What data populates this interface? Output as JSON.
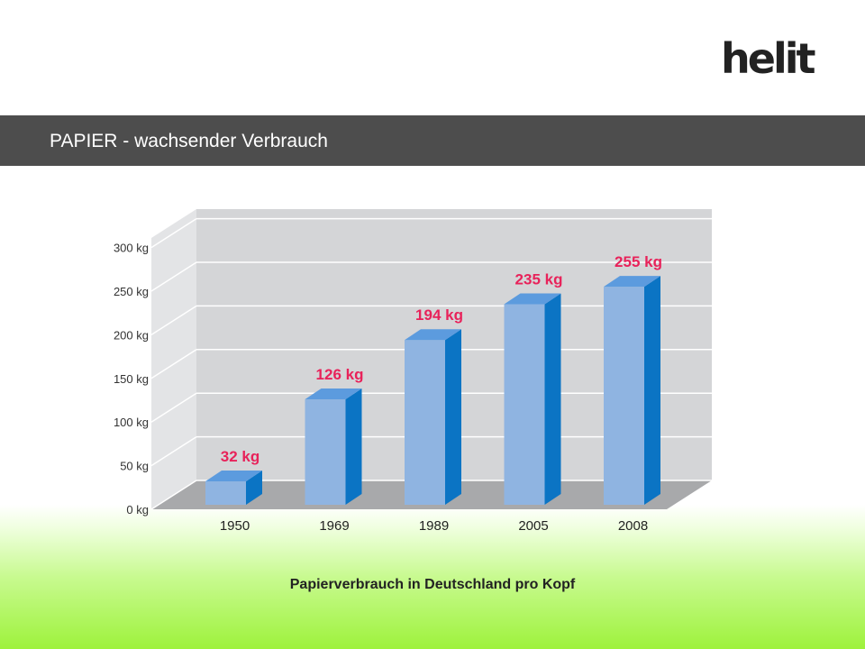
{
  "brand": {
    "logo_text": "helit"
  },
  "header": {
    "title": "PAPIER - wachsender Verbrauch"
  },
  "caption": "Papierverbrauch in Deutschland pro Kopf",
  "colors": {
    "bar_front": "#8fb4e1",
    "bar_top": "#5c9bde",
    "bar_side": "#0b74c4",
    "value_label": "#e8225a",
    "back_wall": "#d4d5d7",
    "side_wall": "#e3e4e6",
    "floor": "#a8a9ab",
    "title_bar": "#4d4d4d"
  },
  "chart_data": {
    "type": "bar",
    "categories": [
      "1950",
      "1969",
      "1989",
      "2005",
      "2008"
    ],
    "values": [
      32,
      126,
      194,
      235,
      255
    ],
    "value_labels": [
      "32 kg",
      "126 kg",
      "194 kg",
      "235 kg",
      "255 kg"
    ],
    "y_ticks": [
      "0 kg",
      "50 kg",
      "100 kg",
      "150 kg",
      "200 kg",
      "250 kg",
      "300 kg"
    ],
    "ylim": [
      0,
      300
    ],
    "title": "",
    "xlabel": "",
    "ylabel": "",
    "grid": true,
    "style": "3d"
  }
}
